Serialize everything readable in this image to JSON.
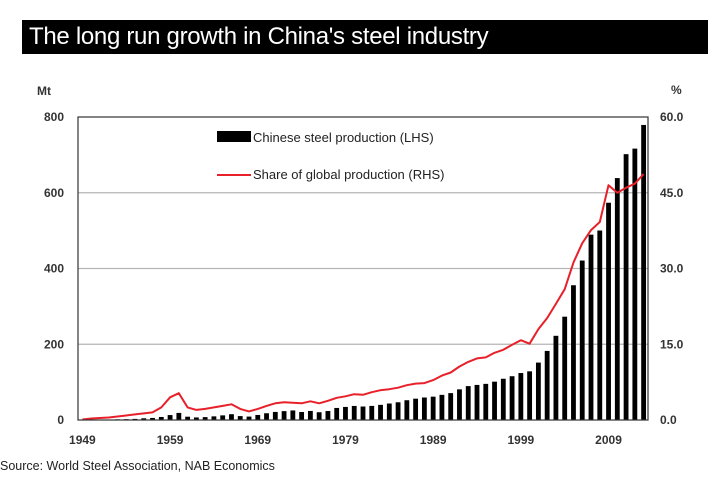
{
  "title": "The long run growth in China's steel industry",
  "source": "Source: World Steel Association, NAB Economics",
  "chart_data": {
    "type": "bar",
    "title": "The long run growth in China's steel industry",
    "ylabel_left": "Mt",
    "ylabel_right": "%",
    "ylim_left": [
      0,
      800
    ],
    "ylim_right": [
      0,
      60
    ],
    "yticks_left": [
      "800",
      "600",
      "400",
      "200",
      "0"
    ],
    "yticks_right": [
      "60.0",
      "45.0",
      "30.0",
      "15.0",
      "0.0"
    ],
    "xtick_labels": [
      "1949",
      "1959",
      "1969",
      "1979",
      "1989",
      "1999",
      "2009"
    ],
    "grid": true,
    "legend_position": "top-center",
    "x": [
      1949,
      1950,
      1951,
      1952,
      1953,
      1954,
      1955,
      1956,
      1957,
      1958,
      1959,
      1960,
      1961,
      1962,
      1963,
      1964,
      1965,
      1966,
      1967,
      1968,
      1969,
      1970,
      1971,
      1972,
      1973,
      1974,
      1975,
      1976,
      1977,
      1978,
      1979,
      1980,
      1981,
      1982,
      1983,
      1984,
      1985,
      1986,
      1987,
      1988,
      1989,
      1990,
      1991,
      1992,
      1993,
      1994,
      1995,
      1996,
      1997,
      1998,
      1999,
      2000,
      2001,
      2002,
      2003,
      2004,
      2005,
      2006,
      2007,
      2008,
      2009,
      2010,
      2011,
      2012,
      2013
    ],
    "series": [
      {
        "name": "Chinese steel production (LHS)",
        "type": "bar",
        "axis": "left",
        "color": "#000000",
        "values": [
          0.2,
          0.6,
          0.9,
          1.3,
          1.8,
          2.2,
          2.9,
          4.5,
          5.4,
          8,
          13,
          18.7,
          8.7,
          6.7,
          7.6,
          9.6,
          12.2,
          15.3,
          10.3,
          9,
          13.3,
          17.8,
          21.3,
          23.4,
          25.2,
          21.1,
          23.9,
          20.5,
          23.7,
          31.8,
          34.5,
          37.1,
          35.6,
          37.2,
          40,
          43.5,
          46.8,
          52.2,
          56.3,
          59.4,
          61.6,
          66.4,
          71,
          80.9,
          89.5,
          92.6,
          95.4,
          101.2,
          108.9,
          115.6,
          124,
          128.5,
          151.6,
          182.4,
          222.3,
          272.8,
          355.8,
          421,
          489.3,
          500.3,
          573.6,
          638.7,
          701.9,
          716.5,
          779
        ]
      },
      {
        "name": "Share of global production (RHS)",
        "type": "line",
        "axis": "right",
        "color": "#e8202a",
        "values": [
          0.1,
          0.3,
          0.4,
          0.5,
          0.7,
          0.9,
          1.1,
          1.3,
          1.5,
          2.5,
          4.5,
          5.3,
          2.5,
          2.0,
          2.2,
          2.5,
          2.8,
          3.1,
          2.2,
          1.7,
          2.2,
          2.8,
          3.3,
          3.5,
          3.4,
          3.3,
          3.7,
          3.3,
          3.8,
          4.4,
          4.7,
          5.1,
          5.0,
          5.5,
          5.9,
          6.1,
          6.4,
          6.9,
          7.2,
          7.3,
          7.9,
          8.8,
          9.4,
          10.6,
          11.5,
          12.2,
          12.4,
          13.3,
          13.9,
          14.9,
          15.8,
          15.1,
          18.0,
          20.2,
          23.0,
          25.9,
          31.2,
          35.0,
          37.6,
          39.2,
          46.5,
          45.0,
          46.0,
          46.8,
          48.7
        ]
      }
    ]
  }
}
